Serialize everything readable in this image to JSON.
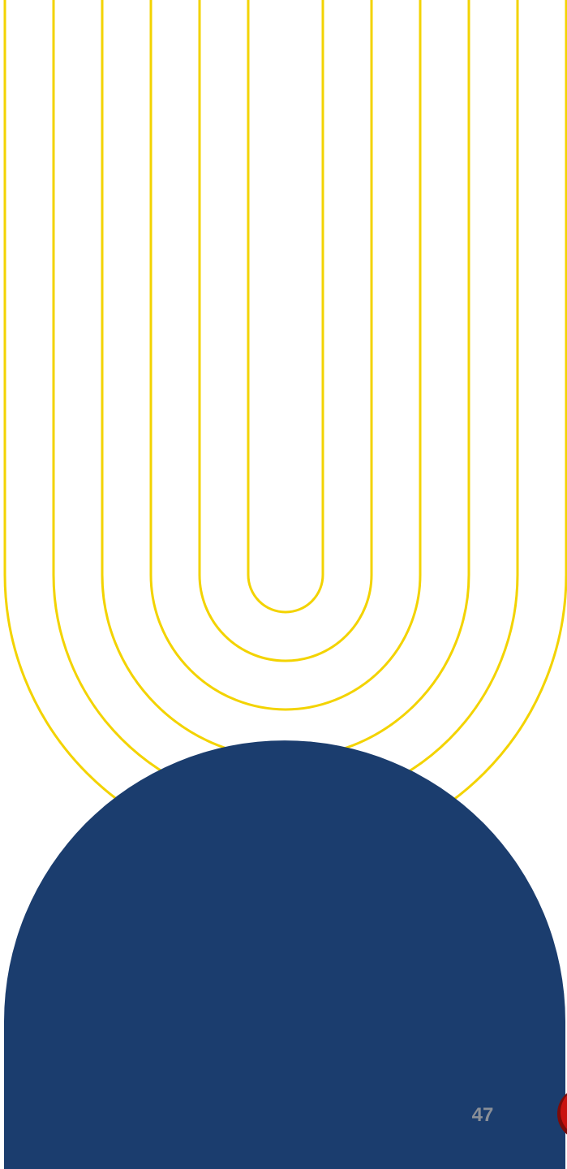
{
  "page": {
    "number": "47"
  },
  "colors": {
    "background": "#ffffff",
    "arch_line": "#f3d300",
    "navy_shape": "#1b3d6e",
    "page_number": "#8a8f97",
    "corner_accent": "#c9120f",
    "corner_accent_shadow": "#7d0b09"
  },
  "icons": {
    "corner_accent": "red-circle-icon"
  }
}
